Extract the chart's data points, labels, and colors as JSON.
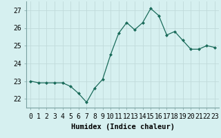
{
  "x": [
    0,
    1,
    2,
    3,
    4,
    5,
    6,
    7,
    8,
    9,
    10,
    11,
    12,
    13,
    14,
    15,
    16,
    17,
    18,
    19,
    20,
    21,
    22,
    23
  ],
  "y": [
    23.0,
    22.9,
    22.9,
    22.9,
    22.9,
    22.7,
    22.3,
    21.8,
    22.6,
    23.1,
    24.5,
    25.7,
    26.3,
    25.9,
    26.3,
    27.1,
    26.7,
    25.6,
    25.8,
    25.3,
    24.8,
    24.8,
    25.0,
    24.9
  ],
  "line_color": "#1a6b5a",
  "marker": "D",
  "marker_size": 2,
  "bg_color": "#d6f0f0",
  "grid_color": "#c0dada",
  "xlabel": "Humidex (Indice chaleur)",
  "ylim": [
    21.5,
    27.5
  ],
  "yticks": [
    22,
    23,
    24,
    25,
    26,
    27
  ],
  "xtick_labels": [
    "0",
    "1",
    "2",
    "3",
    "4",
    "5",
    "6",
    "7",
    "8",
    "9",
    "10",
    "11",
    "12",
    "13",
    "14",
    "15",
    "16",
    "17",
    "18",
    "19",
    "20",
    "21",
    "22",
    "23"
  ],
  "xlabel_fontsize": 7.5,
  "tick_fontsize": 7
}
